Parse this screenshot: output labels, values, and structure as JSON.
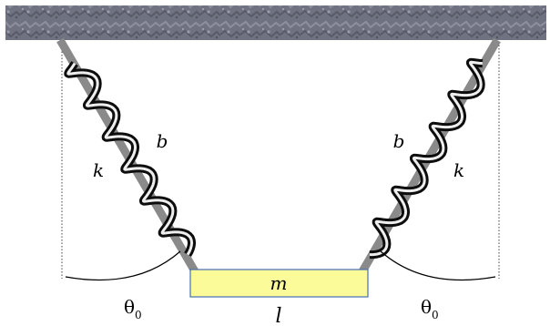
{
  "labels": {
    "spring_left_stiffness": "k",
    "spring_left_damping": "b",
    "spring_right_stiffness": "k",
    "spring_right_damping": "b",
    "mass": "m",
    "length": "l",
    "angle_left": "θ",
    "angle_left_sub": "0",
    "angle_right": "θ",
    "angle_right_sub": "0"
  },
  "colors": {
    "ceiling": "#6f7280",
    "mass_fill": "#fbfb9a",
    "mass_stroke": "#4a6fb0",
    "rod": "#8a8a8a",
    "coil_dark": "#111111",
    "coil_light": "#f2f2f2"
  }
}
